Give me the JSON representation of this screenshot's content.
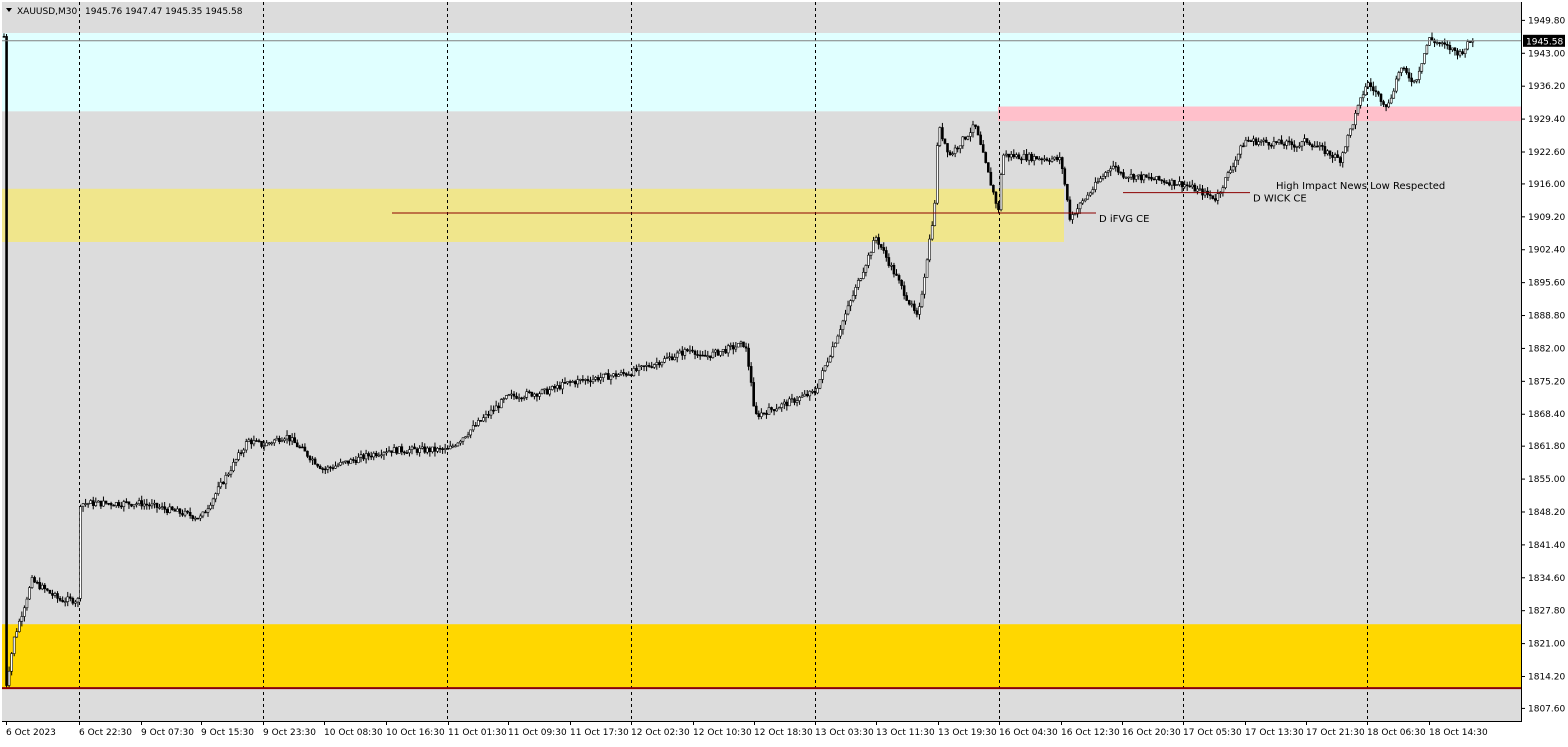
{
  "header": {
    "symbol_timeframe": "XAUUSD,M30",
    "ohlc": "1945.76 1947.47 1945.35 1945.58"
  },
  "chart_data": {
    "type": "candlestick",
    "symbol": "XAUUSD",
    "timeframe": "M30",
    "ylim": [
      1805.0,
      1953.6
    ],
    "grid": "vertical dashed separators",
    "y_ticks": [
      1949.8,
      1943.0,
      1936.2,
      1929.4,
      1922.6,
      1916.0,
      1909.2,
      1902.4,
      1895.6,
      1888.8,
      1882.0,
      1875.2,
      1868.4,
      1861.8,
      1855.0,
      1848.2,
      1841.4,
      1834.6,
      1827.8,
      1821.0,
      1814.2,
      1807.6
    ],
    "y_tick_labels": [
      "1949.80",
      "1943.00",
      "1936.20",
      "1929.40",
      "1922.60",
      "1916.00",
      "1909.20",
      "1902.40",
      "1895.60",
      "1888.80",
      "1882.00",
      "1875.20",
      "1868.40",
      "1861.80",
      "1855.00",
      "1848.20",
      "1841.40",
      "1834.60",
      "1827.80",
      "1821.00",
      "1814.20",
      "1807.60"
    ],
    "x_tick_labels": [
      "6 Oct 2023",
      "6 Oct 22:30",
      "9 Oct 07:30",
      "9 Oct 15:30",
      "9 Oct 23:30",
      "10 Oct 08:30",
      "10 Oct 16:30",
      "11 Oct 01:30",
      "11 Oct 09:30",
      "11 Oct 17:30",
      "12 Oct 02:30",
      "12 Oct 10:30",
      "12 Oct 18:30",
      "13 Oct 03:30",
      "13 Oct 11:30",
      "13 Oct 19:30",
      "16 Oct 04:30",
      "16 Oct 12:30",
      "16 Oct 20:30",
      "17 Oct 05:30",
      "17 Oct 13:30",
      "17 Oct 21:30",
      "18 Oct 06:30",
      "18 Oct 14:30"
    ],
    "current_price": 1945.58,
    "current_price_label": "1945.58",
    "key_points": [
      {
        "x": "6 Oct 2023",
        "y": 1812
      },
      {
        "x": "6 Oct 22:30",
        "y": 1830
      },
      {
        "x": "9 Oct 07:30",
        "y": 1850
      },
      {
        "x": "9 Oct 15:30",
        "y": 1847
      },
      {
        "x": "9 Oct 23:30",
        "y": 1862
      },
      {
        "x": "10 Oct 08:30",
        "y": 1857
      },
      {
        "x": "10 Oct 16:30",
        "y": 1861
      },
      {
        "x": "11 Oct 01:30",
        "y": 1861
      },
      {
        "x": "11 Oct 09:30",
        "y": 1872
      },
      {
        "x": "11 Oct 17:30",
        "y": 1875
      },
      {
        "x": "12 Oct 02:30",
        "y": 1877
      },
      {
        "x": "12 Oct 10:30",
        "y": 1882
      },
      {
        "x": "12 Oct 18:30",
        "y": 1868
      },
      {
        "x": "13 Oct 03:30",
        "y": 1873
      },
      {
        "x": "13 Oct 11:30",
        "y": 1905
      },
      {
        "x": "13 Oct 19:30",
        "y": 1928
      },
      {
        "x": "16 Oct 04:30",
        "y": 1910
      },
      {
        "x": "16 Oct 12:30",
        "y": 1921
      },
      {
        "x": "16 Oct 20:30",
        "y": 1918
      },
      {
        "x": "17 Oct 05:30",
        "y": 1916
      },
      {
        "x": "17 Oct 13:30",
        "y": 1925
      },
      {
        "x": "17 Oct 21:30",
        "y": 1925
      },
      {
        "x": "18 Oct 06:30",
        "y": 1937
      },
      {
        "x": "18 Oct 14:30",
        "y": 1946
      }
    ],
    "zones": [
      {
        "y_from": 1931.0,
        "y_to": 1947.2,
        "color": "#e0ffff"
      },
      {
        "y_from": 1929.0,
        "y_to": 1932.0,
        "color": "#ffc0cb"
      },
      {
        "y_from": 1904.0,
        "y_to": 1915.0,
        "color": "#f0e68c"
      },
      {
        "y_from": 1812.0,
        "y_to": 1825.0,
        "color": "#ffd700"
      }
    ],
    "levels": [
      {
        "price": 1910.0,
        "label": "D iFVG CE"
      },
      {
        "price": 1914.2,
        "label": "D WICK CE"
      },
      {
        "price": 1811.8,
        "label": ""
      }
    ],
    "annotations": [
      "High Impact News Low Respected"
    ]
  },
  "colors": {
    "background": "#dcdcdc",
    "candle_up": "#ffffff",
    "candle_down": "#000000",
    "separator": "#000000",
    "level_line": "#8b0000",
    "price_tag": "#000000"
  }
}
